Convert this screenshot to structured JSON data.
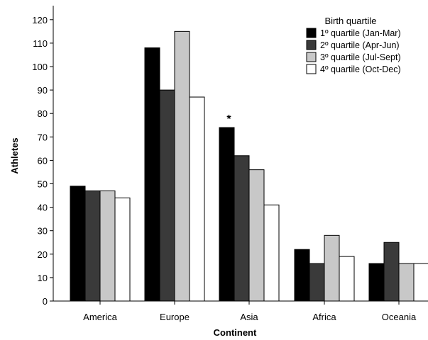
{
  "chart_data": {
    "type": "bar",
    "title": "",
    "xlabel": "Continent",
    "ylabel": "Athletes",
    "categories": [
      "America",
      "Europe",
      "Asia",
      "Africa",
      "Oceania"
    ],
    "ylim": [
      0,
      125
    ],
    "yticks": [
      0,
      10,
      20,
      30,
      40,
      50,
      60,
      70,
      80,
      90,
      100,
      110,
      120
    ],
    "grid": false,
    "legend": {
      "title": "Birth quartile",
      "position": "top-right"
    },
    "series": [
      {
        "name": "1º quartile (Jan-Mar)",
        "color": "#000000",
        "values": [
          49,
          108,
          74,
          22,
          16
        ]
      },
      {
        "name": "2º quartile (Apr-Jun)",
        "color": "#3a3a3a",
        "values": [
          47,
          90,
          62,
          16,
          25
        ]
      },
      {
        "name": "3º quartile (Jul-Sept)",
        "color": "#c8c8c8",
        "values": [
          47,
          115,
          56,
          28,
          16
        ]
      },
      {
        "name": "4º quartile (Oct-Dec)",
        "color": "#ffffff",
        "values": [
          44,
          87,
          41,
          19,
          16
        ]
      }
    ],
    "annotations": [
      {
        "text": "*",
        "category": "Asia",
        "series": 0
      }
    ]
  }
}
